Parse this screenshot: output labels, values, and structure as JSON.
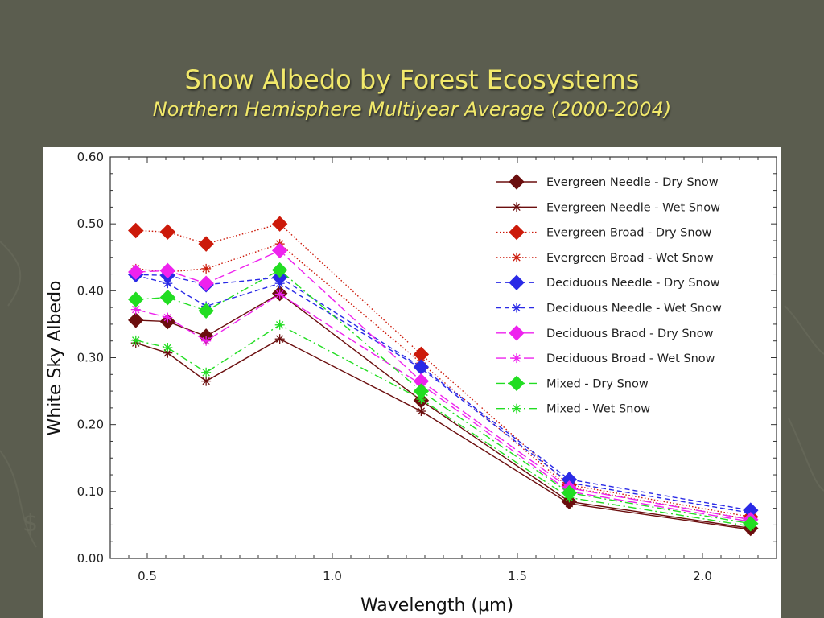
{
  "title": "Snow Albedo by Forest Ecosystems",
  "subtitle": "Northern Hemisphere Multiyear Average (2000-2004)",
  "chart_data": {
    "type": "line",
    "xlabel": "Wavelength (μm)",
    "ylabel": "White Sky Albedo",
    "xlim": [
      0.4,
      2.2
    ],
    "ylim": [
      0.0,
      0.6
    ],
    "xticks": [
      0.5,
      1.0,
      1.5,
      2.0
    ],
    "xtick_labels": [
      "0.5",
      "1.0",
      "1.5",
      "2.0"
    ],
    "yticks": [
      0.0,
      0.1,
      0.2,
      0.3,
      0.4,
      0.5,
      0.6
    ],
    "ytick_labels": [
      "0.00",
      "0.10",
      "0.20",
      "0.30",
      "0.40",
      "0.50",
      "0.60"
    ],
    "grid": false,
    "legend_position": "top-right",
    "x": [
      0.469,
      0.555,
      0.659,
      0.858,
      1.24,
      1.64,
      2.13
    ],
    "series": [
      {
        "name": "Evergreen Needle - Dry Snow",
        "color": "#6b0e0e",
        "dash": "solid",
        "marker": "diamond",
        "values": [
          0.356,
          0.354,
          0.332,
          0.396,
          0.236,
          0.085,
          0.045
        ]
      },
      {
        "name": "Evergreen Needle - Wet Snow",
        "color": "#6b0e0e",
        "dash": "solid",
        "marker": "star",
        "values": [
          0.322,
          0.307,
          0.265,
          0.328,
          0.22,
          0.082,
          0.043
        ]
      },
      {
        "name": "Evergreen Broad - Dry Snow",
        "color": "#cc1a0a",
        "dash": "dotted",
        "marker": "diamond",
        "values": [
          0.49,
          0.488,
          0.47,
          0.5,
          0.305,
          0.11,
          0.062
        ]
      },
      {
        "name": "Evergreen Broad - Wet Snow",
        "color": "#cc1a0a",
        "dash": "dotted",
        "marker": "star",
        "values": [
          0.433,
          0.428,
          0.433,
          0.47,
          0.292,
          0.106,
          0.058
        ]
      },
      {
        "name": "Deciduous Needle - Dry Snow",
        "color": "#2a2ae6",
        "dash": "dashed",
        "marker": "diamond",
        "values": [
          0.424,
          0.423,
          0.409,
          0.42,
          0.286,
          0.118,
          0.072
        ]
      },
      {
        "name": "Deciduous Needle - Wet Snow",
        "color": "#2a2ae6",
        "dash": "dashed",
        "marker": "star",
        "values": [
          0.423,
          0.411,
          0.377,
          0.411,
          0.284,
          0.113,
          0.068
        ]
      },
      {
        "name": "Deciduous Braod - Dry Snow",
        "color": "#ee22ee",
        "dash": "longdash",
        "marker": "diamond",
        "values": [
          0.428,
          0.43,
          0.411,
          0.46,
          0.265,
          0.105,
          0.058
        ]
      },
      {
        "name": "Deciduous Broad - Wet Snow",
        "color": "#ee22ee",
        "dash": "longdash",
        "marker": "star",
        "values": [
          0.372,
          0.36,
          0.325,
          0.395,
          0.26,
          0.1,
          0.055
        ]
      },
      {
        "name": "Mixed - Dry Snow",
        "color": "#22dd22",
        "dash": "dashdot",
        "marker": "diamond",
        "values": [
          0.387,
          0.39,
          0.37,
          0.431,
          0.25,
          0.098,
          0.052
        ]
      },
      {
        "name": "Mixed - Wet Snow",
        "color": "#22dd22",
        "dash": "dashdot",
        "marker": "star",
        "values": [
          0.326,
          0.315,
          0.278,
          0.349,
          0.238,
          0.091,
          0.048
        ]
      }
    ]
  }
}
